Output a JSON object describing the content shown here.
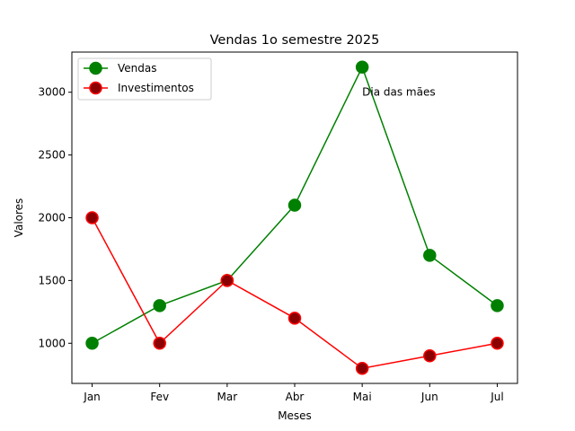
{
  "chart_data": {
    "type": "line",
    "title": "Vendas 1o semestre 2025",
    "xlabel": "Meses",
    "ylabel": "Valores",
    "categories": [
      "Jan",
      "Fev",
      "Mar",
      "Abr",
      "Mai",
      "Jun",
      "Jul"
    ],
    "ylim": [
      680,
      3320
    ],
    "yticks": [
      1000,
      1500,
      2000,
      2500,
      3000
    ],
    "grid": false,
    "legend_position": "upper-left",
    "series": [
      {
        "name": "Vendas",
        "values": [
          1000,
          1300,
          1500,
          2100,
          3200,
          1700,
          1300
        ],
        "color": "#008000",
        "marker_face": "#008000"
      },
      {
        "name": "Investimentos",
        "values": [
          2000,
          1000,
          1500,
          1200,
          800,
          900,
          1000
        ],
        "color": "#ff0000",
        "marker_face": "#8b0000"
      }
    ],
    "annotations": [
      {
        "text": "Dia das mães",
        "x": "Mai",
        "y": 3000
      }
    ]
  }
}
